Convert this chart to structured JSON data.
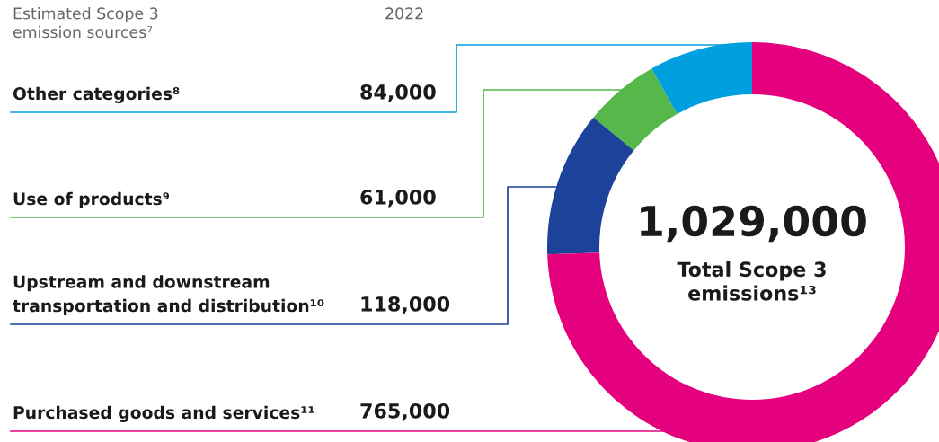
{
  "chart_data": {
    "type": "donut",
    "title": "Estimated Scope 3\nemission sources⁷",
    "subtitle": "2022",
    "categories": [
      "Other categories⁸",
      "Use of products⁹",
      "Upstream and downstream\ntransportation and distribution¹⁰",
      "Purchased goods and services¹¹"
    ],
    "values": [
      84000,
      61000,
      118000,
      765000
    ],
    "colors": [
      "#009fdf",
      "#56b84a",
      "#1d4299",
      "#e5007e"
    ],
    "value_labels": [
      "84,000",
      "61,000",
      "118,000",
      "765,000"
    ],
    "annotations": [
      "1,029,000",
      "Total Scope 3\nemissions¹³"
    ]
  }
}
